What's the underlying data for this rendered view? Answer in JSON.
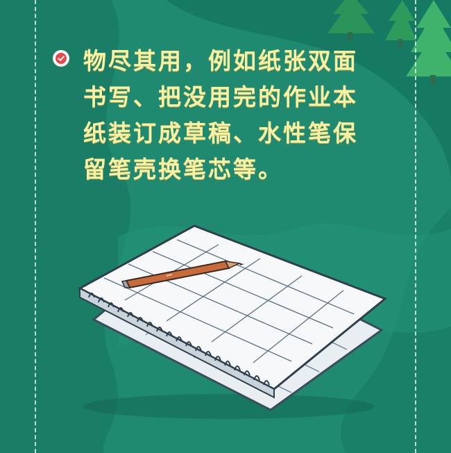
{
  "tip": {
    "lines": [
      "物尽其用，例如纸张双面",
      "书写、把没用完的作业本",
      "纸装订成草稿、水性笔保",
      "留笔壳换笔芯等。"
    ]
  },
  "icons": {
    "bullet": "check-circle-icon",
    "illustration": "notebook-with-pen"
  },
  "colors": {
    "background": "#1f8a70",
    "text": "#f9f0a2",
    "check": "#e5484d"
  }
}
